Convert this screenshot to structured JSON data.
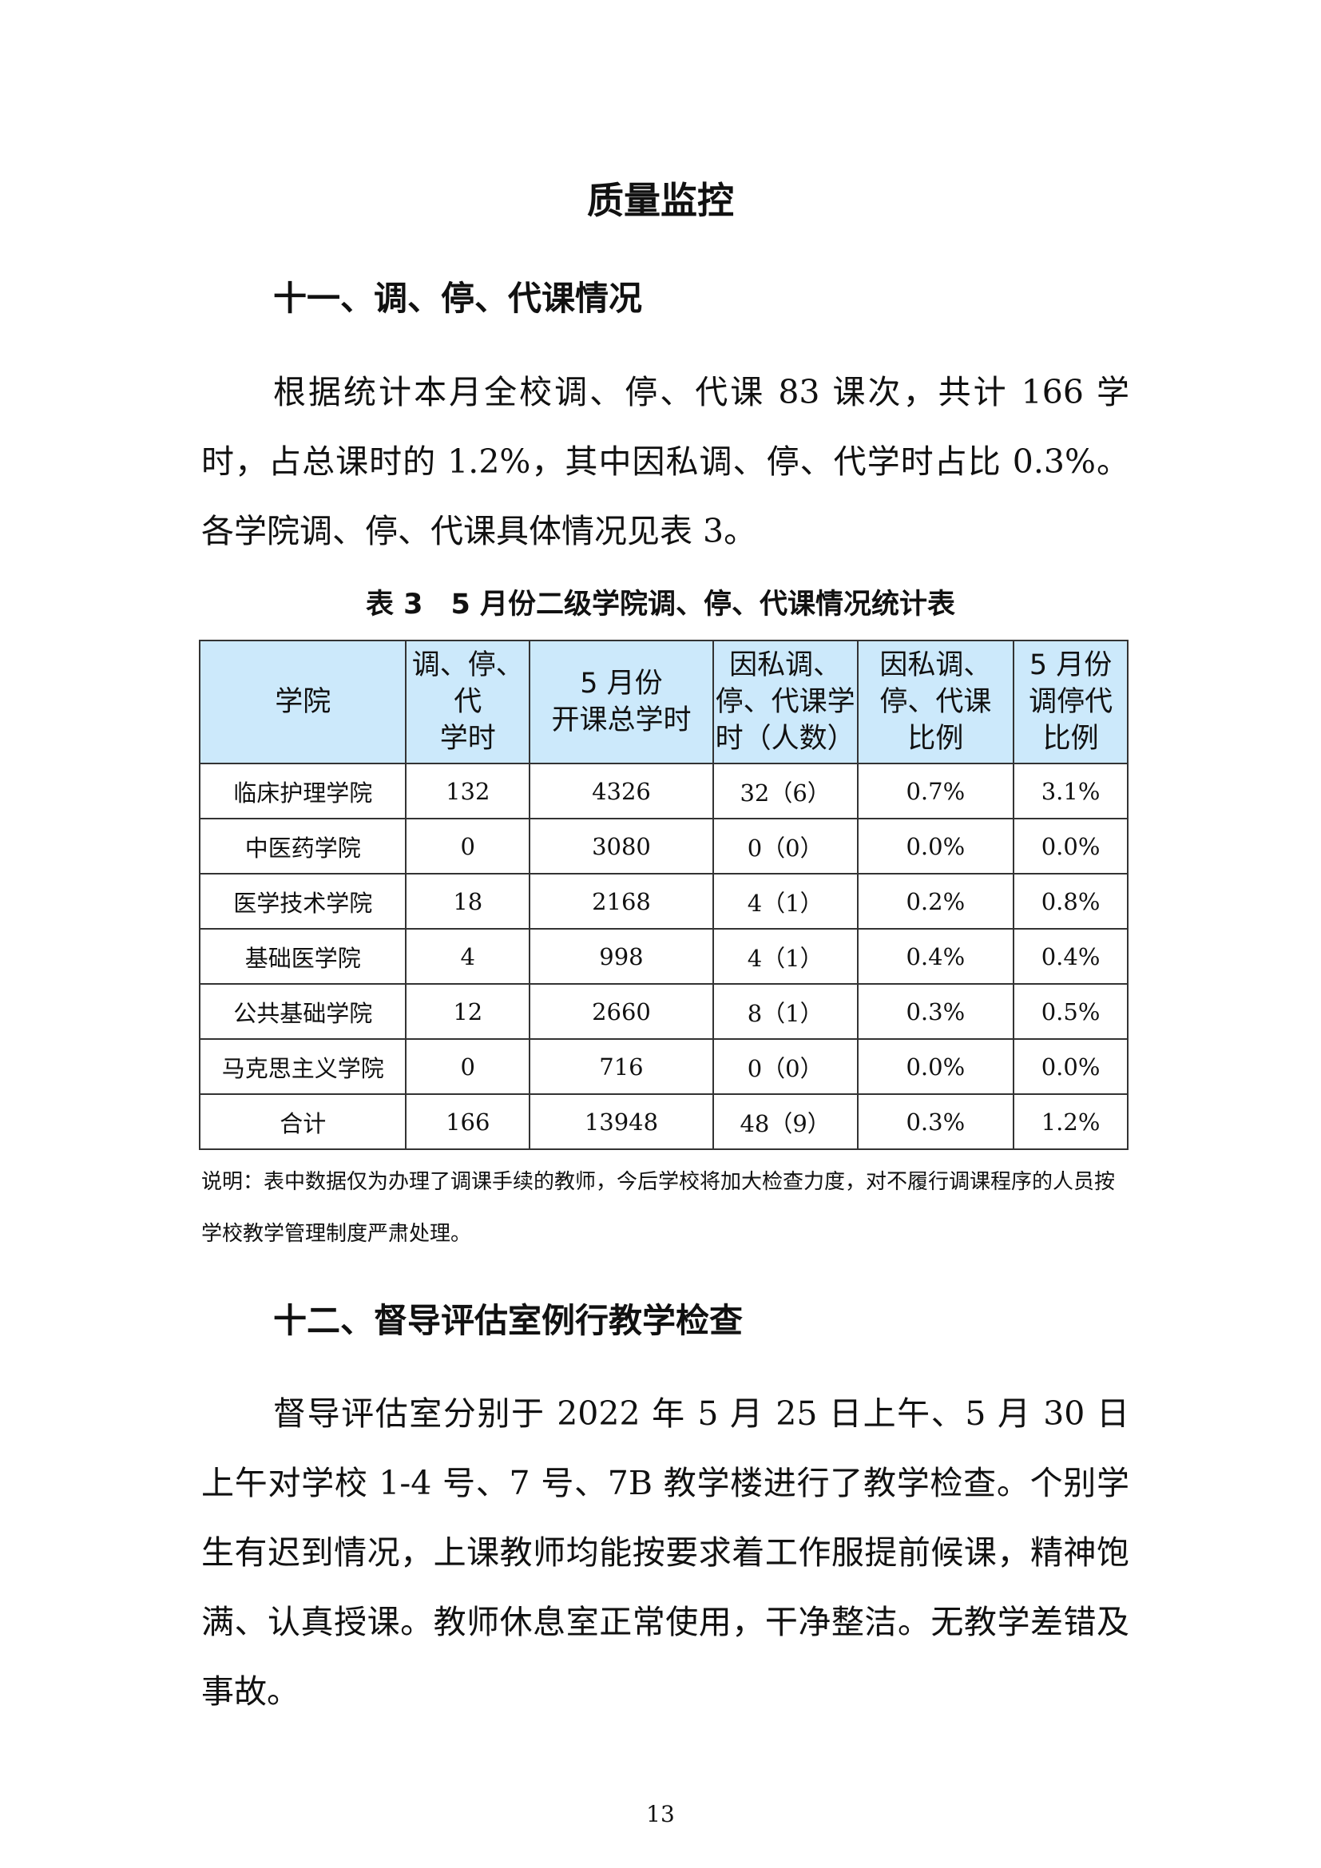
{
  "title": "质量监控",
  "section11": {
    "heading": "十一、调、停、代课情况",
    "paragraph": "根据统计本月全校调、停、代课 83 课次，共计 166 学时，占总课时的 1.2%，其中因私调、停、代学时占比 0.3%。各学院调、停、代课具体情况见表 3。"
  },
  "table": {
    "caption": "表 3　5 月份二级学院调、停、代课情况统计表",
    "headers": [
      "学院",
      "调、停、\n代\n学时",
      "5 月份\n开课总学时",
      "因私调、\n停、代课学\n时（人数）",
      "因私调、\n停、代课\n比例",
      "5 月份\n调停代\n比例"
    ],
    "rows": [
      [
        "临床护理学院",
        "132",
        "4326",
        "32（6）",
        "0.7%",
        "3.1%"
      ],
      [
        "中医药学院",
        "0",
        "3080",
        "0（0）",
        "0.0%",
        "0.0%"
      ],
      [
        "医学技术学院",
        "18",
        "2168",
        "4（1）",
        "0.2%",
        "0.8%"
      ],
      [
        "基础医学院",
        "4",
        "998",
        "4（1）",
        "0.4%",
        "0.4%"
      ],
      [
        "公共基础学院",
        "12",
        "2660",
        "8（1）",
        "0.3%",
        "0.5%"
      ],
      [
        "马克思主义学院",
        "0",
        "716",
        "0（0）",
        "0.0%",
        "0.0%"
      ],
      [
        "合计",
        "166",
        "13948",
        "48（9）",
        "0.3%",
        "1.2%"
      ]
    ],
    "note": "说明：表中数据仅为办理了调课手续的教师，今后学校将加大检查力度，对不履行调课程序的人员按学校教学管理制度严肃处理。"
  },
  "section12": {
    "heading": "十二、督导评估室例行教学检查",
    "paragraph": "督导评估室分别于 2022 年 5 月 25 日上午、5 月 30 日上午对学校 1-4 号、7 号、7B 教学楼进行了教学检查。个别学生有迟到情况，上课教师均能按要求着工作服提前候课，精神饱满、认真授课。教师休息室正常使用，干净整洁。无教学差错及事故。"
  },
  "page_number": "13"
}
